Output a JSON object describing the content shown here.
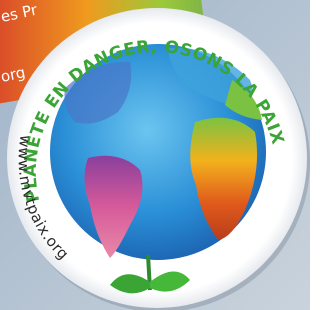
{
  "badge": {
    "top_text": "PLANÈTE EN DANGER, OSONS LA PAIX",
    "url": "www.mvtpaix.org"
  },
  "background": {
    "partial_text_1": "es Pr",
    "partial_text_2": "org"
  }
}
